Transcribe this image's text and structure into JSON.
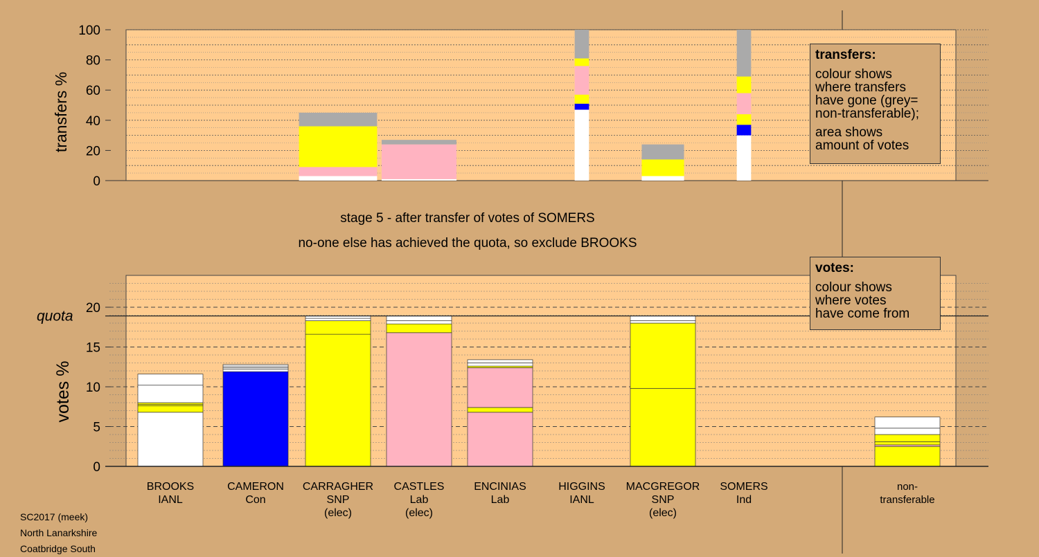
{
  "stage_title": "stage 5 - after transfer of votes of SOMERS",
  "stage_note": "no-one else has achieved the quota, so exclude BROOKS",
  "legend_transfers": {
    "title": "transfers:",
    "text1": "colour shows\nwhere transfers\nhave gone (grey=\nnon-transferable);",
    "text2": "area shows\namount of votes"
  },
  "legend_votes": {
    "title": "votes:",
    "text": "colour shows\nwhere votes\nhave come from"
  },
  "footer": [
    "SC2017 (meek)",
    "North Lanarkshire",
    "Coatbridge South"
  ],
  "colors": {
    "background": "#d4aa78",
    "plot": "#ffcc8f",
    "snp": "#ffff00",
    "labour": "#ffb3c1",
    "con": "#0000ff",
    "other": "#ffffff",
    "nontransferable": "#aaaaaa"
  },
  "chart_data": [
    {
      "type": "bar",
      "name": "transfers",
      "ylabel": "transfers %",
      "ylim": [
        0,
        100
      ],
      "yticks": [
        0,
        20,
        40,
        60,
        80,
        100
      ],
      "categories": [
        "BROOKS",
        "CAMERON",
        "CARRAGHER",
        "CASTLES",
        "ENCINIAS",
        "HIGGINS",
        "MACGREGOR",
        "SOMERS",
        "non-transferable"
      ],
      "bars": [
        {
          "category": "CARRAGHER",
          "width": 1.2,
          "segments": [
            {
              "color": "#ffffff",
              "value": 3
            },
            {
              "color": "#ffb3c1",
              "value": 6
            },
            {
              "color": "#ffff00",
              "value": 27
            },
            {
              "color": "#aaaaaa",
              "value": 9
            }
          ]
        },
        {
          "category": "CASTLES",
          "width": 1.15,
          "segments": [
            {
              "color": "#ffffff",
              "value": 1
            },
            {
              "color": "#ffb3c1",
              "value": 23
            },
            {
              "color": "#aaaaaa",
              "value": 3
            }
          ]
        },
        {
          "category": "HIGGINS",
          "width": 0.22,
          "segments": [
            {
              "color": "#ffffff",
              "value": 47
            },
            {
              "color": "#0000ff",
              "value": 4
            },
            {
              "color": "#ffff00",
              "value": 6
            },
            {
              "color": "#ffb3c1",
              "value": 19
            },
            {
              "color": "#ffff00",
              "value": 5
            },
            {
              "color": "#aaaaaa",
              "value": 19
            }
          ]
        },
        {
          "category": "MACGREGOR",
          "width": 0.65,
          "segments": [
            {
              "color": "#ffffff",
              "value": 3
            },
            {
              "color": "#ffff00",
              "value": 11
            },
            {
              "color": "#aaaaaa",
              "value": 10
            }
          ]
        },
        {
          "category": "SOMERS",
          "width": 0.22,
          "segments": [
            {
              "color": "#ffffff",
              "value": 30
            },
            {
              "color": "#0000ff",
              "value": 7
            },
            {
              "color": "#ffff00",
              "value": 7
            },
            {
              "color": "#ffb3c1",
              "value": 14
            },
            {
              "color": "#ffff00",
              "value": 11
            },
            {
              "color": "#aaaaaa",
              "value": 31
            }
          ]
        }
      ]
    },
    {
      "type": "bar",
      "name": "votes",
      "ylabel": "votes %",
      "ylim": [
        0,
        24
      ],
      "yticks": [
        0,
        5,
        10,
        15,
        20
      ],
      "quota": 18.9,
      "quota_label": "quota",
      "candidates": [
        {
          "name": "BROOKS",
          "party": "IANL",
          "status": "",
          "segments": [
            {
              "color": "#ffffff",
              "value": 6.8
            },
            {
              "color": "#ffff00",
              "value": 0.8
            },
            {
              "color": "#ffff00",
              "value": 0.2
            },
            {
              "color": "#ffff00",
              "value": 0.2
            },
            {
              "color": "#ffffff",
              "value": 2.2
            },
            {
              "color": "#ffffff",
              "value": 1.4
            }
          ]
        },
        {
          "name": "CAMERON",
          "party": "Con",
          "status": "",
          "segments": [
            {
              "color": "#0000ff",
              "value": 11.9
            },
            {
              "color": "#ffffff",
              "value": 0.3
            },
            {
              "color": "#ffffff",
              "value": 0.2
            },
            {
              "color": "#ffffff",
              "value": 0.2
            },
            {
              "color": "#ffffff",
              "value": 0.2
            }
          ]
        },
        {
          "name": "CARRAGHER",
          "party": "SNP",
          "status": "(elec)",
          "segments": [
            {
              "color": "#ffff00",
              "value": 16.6
            },
            {
              "color": "#ffff00",
              "value": 1.7
            },
            {
              "color": "#ffffff",
              "value": 0.3
            },
            {
              "color": "#ffffff",
              "value": 0.3
            }
          ]
        },
        {
          "name": "CASTLES",
          "party": "Lab",
          "status": "(elec)",
          "segments": [
            {
              "color": "#ffb3c1",
              "value": 16.8
            },
            {
              "color": "#ffff00",
              "value": 1.1
            },
            {
              "color": "#ffffff",
              "value": 0.4
            },
            {
              "color": "#ffffff",
              "value": 0.6
            }
          ]
        },
        {
          "name": "ENCINIAS",
          "party": "Lab",
          "status": "",
          "segments": [
            {
              "color": "#ffb3c1",
              "value": 6.8
            },
            {
              "color": "#ffff00",
              "value": 0.6
            },
            {
              "color": "#ffb3c1",
              "value": 5.0
            },
            {
              "color": "#ffff00",
              "value": 0.2
            },
            {
              "color": "#ffffff",
              "value": 0.4
            },
            {
              "color": "#ffffff",
              "value": 0.4
            }
          ]
        },
        {
          "name": "HIGGINS",
          "party": "IANL",
          "status": "",
          "segments": []
        },
        {
          "name": "MACGREGOR",
          "party": "SNP",
          "status": "(elec)",
          "segments": [
            {
              "color": "#ffff00",
              "value": 9.8
            },
            {
              "color": "#ffff00",
              "value": 8.2
            },
            {
              "color": "#ffffff",
              "value": 0.3
            },
            {
              "color": "#ffffff",
              "value": 0.6
            }
          ]
        },
        {
          "name": "SOMERS",
          "party": "Ind",
          "status": "",
          "segments": []
        },
        {
          "name": "non-",
          "party": "transferable",
          "status": "",
          "segments": [
            {
              "color": "#ffff00",
              "value": 2.5
            },
            {
              "color": "#ffb3c1",
              "value": 0.2
            },
            {
              "color": "#ffff00",
              "value": 0.4
            },
            {
              "color": "#ffff00",
              "value": 0.9
            },
            {
              "color": "#ffffff",
              "value": 0.8
            },
            {
              "color": "#ffffff",
              "value": 1.4
            }
          ]
        }
      ]
    }
  ]
}
